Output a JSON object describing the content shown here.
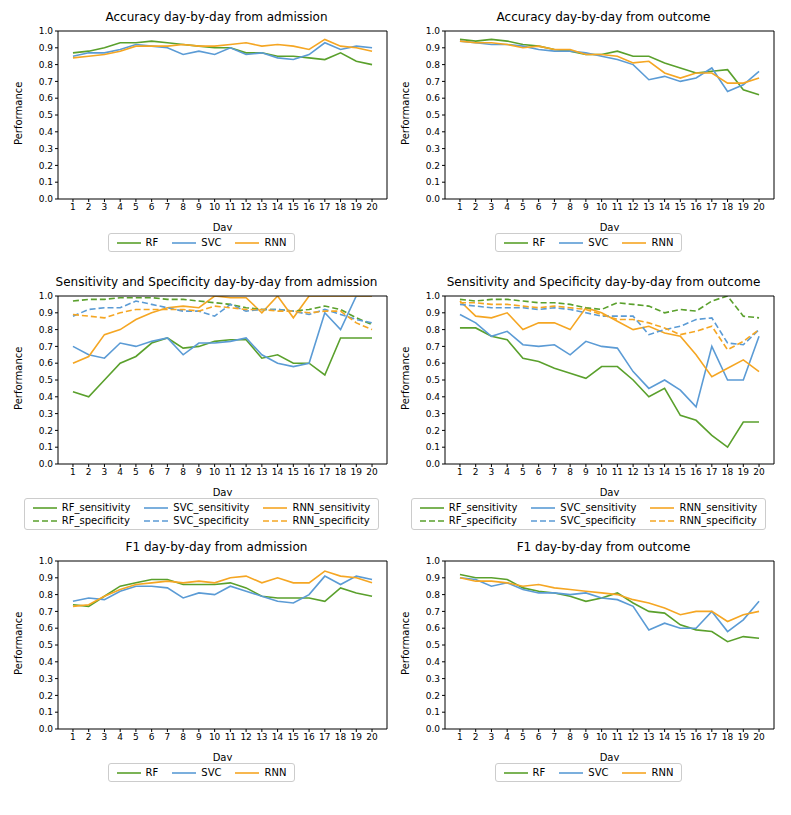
{
  "chart_data": [
    {
      "type": "line",
      "title": "Accuracy day-by-day from admission",
      "x_label": "Day",
      "y_label": "Performance",
      "x": [
        1,
        2,
        3,
        4,
        5,
        6,
        7,
        8,
        9,
        10,
        11,
        12,
        13,
        14,
        15,
        16,
        17,
        18,
        19,
        20
      ],
      "xlim": [
        0.05,
        20.95
      ],
      "xticks": [
        1,
        2,
        3,
        4,
        5,
        6,
        7,
        8,
        9,
        10,
        11,
        12,
        13,
        14,
        15,
        16,
        17,
        18,
        19,
        20
      ],
      "ylim": [
        0,
        1
      ],
      "yticks": [
        {
          "value": 0,
          "label": "0.0"
        },
        0.1,
        0.2,
        0.3,
        0.4,
        0.5,
        0.6,
        0.7,
        0.8,
        0.9,
        {
          "value": 1,
          "label": "1.0"
        }
      ],
      "grid": false,
      "legend": "bottom",
      "series": [
        {
          "name": "RF",
          "color": "#5aa02c",
          "line_style": "solid",
          "values": [
            0.87,
            0.88,
            0.9,
            0.93,
            0.93,
            0.94,
            0.93,
            0.92,
            0.91,
            0.9,
            0.9,
            0.87,
            0.87,
            0.85,
            0.85,
            0.84,
            0.83,
            0.87,
            0.82,
            0.8
          ]
        },
        {
          "name": "SVC",
          "color": "#5b9bd5",
          "line_style": "solid",
          "values": [
            0.85,
            0.87,
            0.87,
            0.89,
            0.92,
            0.91,
            0.9,
            0.86,
            0.88,
            0.86,
            0.9,
            0.86,
            0.87,
            0.84,
            0.83,
            0.86,
            0.93,
            0.89,
            0.91,
            0.9
          ]
        },
        {
          "name": "RNN",
          "color": "#f5a623",
          "line_style": "solid",
          "values": [
            0.84,
            0.85,
            0.86,
            0.88,
            0.91,
            0.91,
            0.91,
            0.92,
            0.91,
            0.91,
            0.92,
            0.93,
            0.91,
            0.92,
            0.91,
            0.89,
            0.95,
            0.91,
            0.9,
            0.88
          ]
        }
      ]
    },
    {
      "type": "line",
      "title": "Accuracy day-by-day from outcome",
      "x_label": "Day",
      "y_label": "Performance",
      "x": [
        1,
        2,
        3,
        4,
        5,
        6,
        7,
        8,
        9,
        10,
        11,
        12,
        13,
        14,
        15,
        16,
        17,
        18,
        19,
        20
      ],
      "xlim": [
        0.05,
        20.95
      ],
      "xticks": [
        1,
        2,
        3,
        4,
        5,
        6,
        7,
        8,
        9,
        10,
        11,
        12,
        13,
        14,
        15,
        16,
        17,
        18,
        19,
        20
      ],
      "ylim": [
        0,
        1
      ],
      "yticks": [
        {
          "value": 0,
          "label": "0.0"
        },
        0.1,
        0.2,
        0.3,
        0.4,
        0.5,
        0.6,
        0.7,
        0.8,
        0.9,
        {
          "value": 1,
          "label": "1.0"
        }
      ],
      "grid": false,
      "legend": "bottom",
      "series": [
        {
          "name": "RF",
          "color": "#5aa02c",
          "line_style": "solid",
          "values": [
            0.95,
            0.94,
            0.95,
            0.94,
            0.92,
            0.91,
            0.89,
            0.88,
            0.86,
            0.86,
            0.88,
            0.85,
            0.85,
            0.81,
            0.78,
            0.75,
            0.76,
            0.77,
            0.65,
            0.62
          ]
        },
        {
          "name": "SVC",
          "color": "#5b9bd5",
          "line_style": "solid",
          "values": [
            0.94,
            0.93,
            0.92,
            0.92,
            0.91,
            0.89,
            0.88,
            0.88,
            0.87,
            0.85,
            0.83,
            0.8,
            0.71,
            0.73,
            0.7,
            0.72,
            0.78,
            0.64,
            0.68,
            0.76
          ]
        },
        {
          "name": "RNN",
          "color": "#f5a623",
          "line_style": "solid",
          "values": [
            0.94,
            0.93,
            0.93,
            0.92,
            0.9,
            0.91,
            0.89,
            0.89,
            0.86,
            0.86,
            0.85,
            0.81,
            0.82,
            0.75,
            0.72,
            0.75,
            0.75,
            0.69,
            0.69,
            0.72
          ]
        }
      ]
    },
    {
      "type": "line",
      "title": "Sensitivity and Specificity day-by-day from admission",
      "x_label": "Day",
      "y_label": "Performance",
      "x": [
        1,
        2,
        3,
        4,
        5,
        6,
        7,
        8,
        9,
        10,
        11,
        12,
        13,
        14,
        15,
        16,
        17,
        18,
        19,
        20
      ],
      "xlim": [
        0.05,
        20.95
      ],
      "xticks": [
        1,
        2,
        3,
        4,
        5,
        6,
        7,
        8,
        9,
        10,
        11,
        12,
        13,
        14,
        15,
        16,
        17,
        18,
        19,
        20
      ],
      "ylim": [
        0,
        1
      ],
      "yticks": [
        {
          "value": 0,
          "label": "0.0"
        },
        0.1,
        0.2,
        0.3,
        0.4,
        0.5,
        0.6,
        0.7,
        0.8,
        0.9,
        {
          "value": 1,
          "label": "1.0"
        }
      ],
      "grid": false,
      "legend": "bottom",
      "series": [
        {
          "name": "RF_sensitivity",
          "color": "#5aa02c",
          "line_style": "solid",
          "values": [
            0.43,
            0.4,
            0.5,
            0.6,
            0.64,
            0.72,
            0.75,
            0.69,
            0.7,
            0.73,
            0.74,
            0.74,
            0.63,
            0.65,
            0.6,
            0.6,
            0.53,
            0.75,
            0.75,
            0.75
          ]
        },
        {
          "name": "SVC_sensitivity",
          "color": "#5b9bd5",
          "line_style": "solid",
          "values": [
            0.7,
            0.65,
            0.63,
            0.72,
            0.7,
            0.73,
            0.75,
            0.65,
            0.72,
            0.72,
            0.73,
            0.75,
            0.65,
            0.6,
            0.58,
            0.6,
            0.9,
            0.8,
            1.0,
            1.0
          ]
        },
        {
          "name": "RNN_sensitivity",
          "color": "#f5a623",
          "line_style": "solid",
          "values": [
            0.6,
            0.64,
            0.77,
            0.8,
            0.86,
            0.9,
            0.93,
            0.94,
            0.93,
            1.0,
            0.99,
            0.99,
            0.9,
            1.0,
            0.87,
            1.0,
            1.0,
            1.0,
            1.0,
            1.0
          ]
        },
        {
          "name": "RF_specificity",
          "color": "#5aa02c",
          "line_style": "dashed",
          "values": [
            0.97,
            0.98,
            0.98,
            0.99,
            0.99,
            0.99,
            0.98,
            0.98,
            0.97,
            0.96,
            0.95,
            0.93,
            0.92,
            0.92,
            0.91,
            0.92,
            0.94,
            0.92,
            0.87,
            0.83
          ]
        },
        {
          "name": "SVC_specificity",
          "color": "#5b9bd5",
          "line_style": "dashed",
          "values": [
            0.88,
            0.92,
            0.93,
            0.93,
            0.97,
            0.95,
            0.93,
            0.91,
            0.91,
            0.88,
            0.95,
            0.91,
            0.92,
            0.92,
            0.91,
            0.89,
            0.92,
            0.89,
            0.86,
            0.84
          ]
        },
        {
          "name": "RNN_specificity",
          "color": "#f5a623",
          "line_style": "dashed",
          "values": [
            0.89,
            0.88,
            0.87,
            0.9,
            0.92,
            0.92,
            0.92,
            0.92,
            0.91,
            0.94,
            0.93,
            0.92,
            0.92,
            0.91,
            0.91,
            0.9,
            0.91,
            0.91,
            0.84,
            0.8
          ]
        }
      ]
    },
    {
      "type": "line",
      "title": "Sensitivity and Specificity day-by-day from outcome",
      "x_label": "Day",
      "y_label": "Performance",
      "x": [
        1,
        2,
        3,
        4,
        5,
        6,
        7,
        8,
        9,
        10,
        11,
        12,
        13,
        14,
        15,
        16,
        17,
        18,
        19,
        20
      ],
      "xlim": [
        0.05,
        20.95
      ],
      "xticks": [
        1,
        2,
        3,
        4,
        5,
        6,
        7,
        8,
        9,
        10,
        11,
        12,
        13,
        14,
        15,
        16,
        17,
        18,
        19,
        20
      ],
      "ylim": [
        0,
        1
      ],
      "yticks": [
        {
          "value": 0,
          "label": "0.0"
        },
        0.1,
        0.2,
        0.3,
        0.4,
        0.5,
        0.6,
        0.7,
        0.8,
        0.9,
        {
          "value": 1,
          "label": "1.0"
        }
      ],
      "grid": false,
      "legend": "bottom",
      "series": [
        {
          "name": "RF_sensitivity",
          "color": "#5aa02c",
          "line_style": "solid",
          "values": [
            0.81,
            0.81,
            0.76,
            0.74,
            0.63,
            0.61,
            0.57,
            0.54,
            0.51,
            0.58,
            0.58,
            0.5,
            0.4,
            0.45,
            0.29,
            0.26,
            0.17,
            0.1,
            0.25,
            0.25
          ]
        },
        {
          "name": "SVC_sensitivity",
          "color": "#5b9bd5",
          "line_style": "solid",
          "values": [
            0.89,
            0.84,
            0.76,
            0.79,
            0.71,
            0.7,
            0.71,
            0.65,
            0.73,
            0.7,
            0.69,
            0.55,
            0.45,
            0.5,
            0.44,
            0.34,
            0.7,
            0.5,
            0.5,
            0.76
          ]
        },
        {
          "name": "RNN_sensitivity",
          "color": "#f5a623",
          "line_style": "solid",
          "values": [
            0.97,
            0.88,
            0.87,
            0.9,
            0.8,
            0.84,
            0.84,
            0.8,
            0.93,
            0.9,
            0.85,
            0.8,
            0.82,
            0.78,
            0.76,
            0.65,
            0.52,
            0.57,
            0.62,
            0.55
          ]
        },
        {
          "name": "RF_specificity",
          "color": "#5aa02c",
          "line_style": "dashed",
          "values": [
            0.98,
            0.97,
            0.98,
            0.98,
            0.97,
            0.96,
            0.96,
            0.95,
            0.93,
            0.92,
            0.96,
            0.95,
            0.94,
            0.9,
            0.92,
            0.91,
            0.97,
            1.0,
            0.88,
            0.87
          ]
        },
        {
          "name": "SVC_specificity",
          "color": "#5b9bd5",
          "line_style": "dashed",
          "values": [
            0.95,
            0.94,
            0.93,
            0.93,
            0.93,
            0.92,
            0.93,
            0.92,
            0.9,
            0.88,
            0.88,
            0.88,
            0.77,
            0.8,
            0.82,
            0.86,
            0.87,
            0.72,
            0.71,
            0.8
          ]
        },
        {
          "name": "RNN_specificity",
          "color": "#f5a623",
          "line_style": "dashed",
          "values": [
            0.96,
            0.96,
            0.95,
            0.95,
            0.94,
            0.93,
            0.94,
            0.93,
            0.92,
            0.89,
            0.86,
            0.86,
            0.84,
            0.81,
            0.77,
            0.79,
            0.82,
            0.68,
            0.73,
            0.8
          ]
        }
      ]
    },
    {
      "type": "line",
      "title": "F1 day-by-day from admission",
      "x_label": "Day",
      "y_label": "Performance",
      "x": [
        1,
        2,
        3,
        4,
        5,
        6,
        7,
        8,
        9,
        10,
        11,
        12,
        13,
        14,
        15,
        16,
        17,
        18,
        19,
        20
      ],
      "xlim": [
        0.05,
        20.95
      ],
      "xticks": [
        1,
        2,
        3,
        4,
        5,
        6,
        7,
        8,
        9,
        10,
        11,
        12,
        13,
        14,
        15,
        16,
        17,
        18,
        19,
        20
      ],
      "ylim": [
        0,
        1
      ],
      "yticks": [
        {
          "value": 0,
          "label": "0.0"
        },
        0.1,
        0.2,
        0.3,
        0.4,
        0.5,
        0.6,
        0.7,
        0.8,
        0.9,
        {
          "value": 1,
          "label": "1.0"
        }
      ],
      "grid": false,
      "legend": "bottom",
      "series": [
        {
          "name": "RF",
          "color": "#5aa02c",
          "line_style": "solid",
          "values": [
            0.74,
            0.73,
            0.79,
            0.85,
            0.87,
            0.89,
            0.89,
            0.86,
            0.86,
            0.86,
            0.87,
            0.84,
            0.79,
            0.78,
            0.78,
            0.78,
            0.76,
            0.84,
            0.81,
            0.79
          ]
        },
        {
          "name": "SVC",
          "color": "#5b9bd5",
          "line_style": "solid",
          "values": [
            0.76,
            0.78,
            0.77,
            0.82,
            0.85,
            0.85,
            0.84,
            0.78,
            0.81,
            0.8,
            0.85,
            0.82,
            0.79,
            0.76,
            0.75,
            0.8,
            0.91,
            0.86,
            0.91,
            0.89
          ]
        },
        {
          "name": "RNN",
          "color": "#f5a623",
          "line_style": "solid",
          "values": [
            0.73,
            0.74,
            0.79,
            0.83,
            0.86,
            0.87,
            0.88,
            0.87,
            0.88,
            0.87,
            0.9,
            0.91,
            0.87,
            0.9,
            0.87,
            0.87,
            0.94,
            0.91,
            0.9,
            0.87
          ]
        }
      ]
    },
    {
      "type": "line",
      "title": "F1 day-by-day from outcome",
      "x_label": "Day",
      "y_label": "Performance",
      "x": [
        1,
        2,
        3,
        4,
        5,
        6,
        7,
        8,
        9,
        10,
        11,
        12,
        13,
        14,
        15,
        16,
        17,
        18,
        19,
        20
      ],
      "xlim": [
        0.05,
        20.95
      ],
      "xticks": [
        1,
        2,
        3,
        4,
        5,
        6,
        7,
        8,
        9,
        10,
        11,
        12,
        13,
        14,
        15,
        16,
        17,
        18,
        19,
        20
      ],
      "ylim": [
        0,
        1
      ],
      "yticks": [
        {
          "value": 0,
          "label": "0.0"
        },
        0.1,
        0.2,
        0.3,
        0.4,
        0.5,
        0.6,
        0.7,
        0.8,
        0.9,
        {
          "value": 1,
          "label": "1.0"
        }
      ],
      "grid": false,
      "legend": "bottom",
      "series": [
        {
          "name": "RF",
          "color": "#5aa02c",
          "line_style": "solid",
          "values": [
            0.92,
            0.9,
            0.9,
            0.89,
            0.84,
            0.82,
            0.81,
            0.79,
            0.76,
            0.78,
            0.81,
            0.75,
            0.7,
            0.69,
            0.62,
            0.59,
            0.58,
            0.52,
            0.55,
            0.54
          ]
        },
        {
          "name": "SVC",
          "color": "#5b9bd5",
          "line_style": "solid",
          "values": [
            0.9,
            0.89,
            0.85,
            0.87,
            0.83,
            0.81,
            0.81,
            0.8,
            0.81,
            0.78,
            0.77,
            0.73,
            0.59,
            0.63,
            0.6,
            0.6,
            0.7,
            0.58,
            0.65,
            0.76
          ]
        },
        {
          "name": "RNN",
          "color": "#f5a623",
          "line_style": "solid",
          "values": [
            0.9,
            0.88,
            0.88,
            0.87,
            0.85,
            0.86,
            0.84,
            0.83,
            0.82,
            0.81,
            0.8,
            0.77,
            0.75,
            0.72,
            0.68,
            0.7,
            0.7,
            0.64,
            0.68,
            0.7
          ]
        }
      ]
    }
  ]
}
